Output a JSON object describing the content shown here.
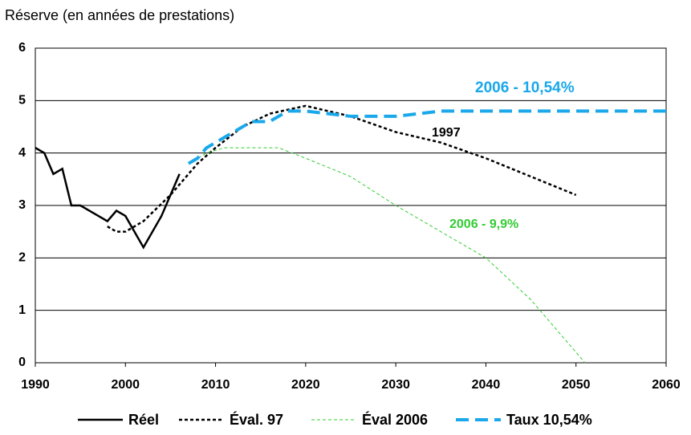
{
  "chart_data": {
    "type": "line",
    "title": "Réserve (en années de prestations)",
    "xlim": [
      1990,
      2060
    ],
    "xticks": [
      1990,
      2000,
      2010,
      2020,
      2030,
      2040,
      2050,
      2060
    ],
    "ylim": [
      0,
      6
    ],
    "yticks": [
      0,
      1,
      2,
      3,
      4,
      5,
      6
    ],
    "grid": true,
    "legend": "bottom",
    "series": [
      {
        "name": "Réel",
        "color": "#000000",
        "dash": "solid",
        "x": [
          1990,
          1991,
          1992,
          1993,
          1994,
          1995,
          1998,
          1999,
          2000,
          2002,
          2004,
          2006
        ],
        "values": [
          4.1,
          4.0,
          3.6,
          3.7,
          3.0,
          3.0,
          2.7,
          2.9,
          2.8,
          2.2,
          2.8,
          3.6
        ]
      },
      {
        "name": "Éval. 97",
        "color": "#000000",
        "dash": "short",
        "x": [
          1998,
          1999,
          2000,
          2002,
          2005,
          2008,
          2010,
          2013,
          2016,
          2020,
          2025,
          2030,
          2035,
          2040,
          2045,
          2050
        ],
        "values": [
          2.6,
          2.5,
          2.5,
          2.7,
          3.2,
          3.8,
          4.1,
          4.5,
          4.75,
          4.9,
          4.7,
          4.4,
          4.2,
          3.9,
          3.55,
          3.2
        ]
      },
      {
        "name": "Éval 2006",
        "color": "#33cc33",
        "dash": "thin",
        "x": [
          2007,
          2009,
          2011,
          2014,
          2017,
          2020,
          2025,
          2030,
          2035,
          2040,
          2045,
          2048,
          2051
        ],
        "values": [
          3.8,
          4.0,
          4.1,
          4.1,
          4.1,
          3.9,
          3.55,
          3.0,
          2.5,
          2.0,
          1.2,
          0.6,
          0
        ]
      },
      {
        "name": "Taux 10,54%",
        "color": "#1aa8ea",
        "dash": "long",
        "x": [
          2007,
          2008,
          2009,
          2012,
          2014,
          2016,
          2018,
          2020,
          2025,
          2027,
          2030,
          2035,
          2060
        ],
        "values": [
          3.8,
          3.9,
          4.1,
          4.4,
          4.6,
          4.6,
          4.8,
          4.8,
          4.7,
          4.7,
          4.7,
          4.8,
          4.8
        ]
      }
    ],
    "annotations": [
      {
        "text": "2006 - 10,54%",
        "color": "#1aa8ea"
      },
      {
        "text": "1997",
        "color": "#000000"
      },
      {
        "text": "2006 - 9,9%",
        "color": "#33cc33"
      }
    ]
  }
}
